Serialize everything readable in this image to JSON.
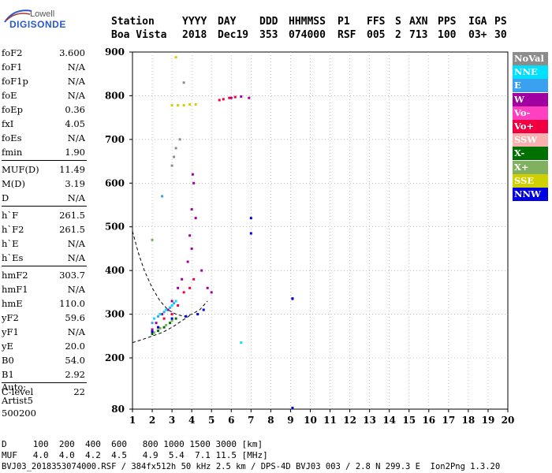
{
  "logo": {
    "line1": "Lowell",
    "line2": "DIGISONDE"
  },
  "header": {
    "labels": [
      "Station",
      "YYYY",
      "DAY",
      "DDD",
      "HHMMSS",
      "P1",
      "FFS",
      "S",
      "AXN",
      "PPS",
      "IGA",
      "PS"
    ],
    "values": [
      "Boa Vista",
      "2018",
      "Dec19",
      "353",
      "074000",
      "RSF",
      "005",
      "2",
      "713",
      "100",
      "03+",
      "30"
    ]
  },
  "params": [
    {
      "name": "foF2",
      "value": "3.600"
    },
    {
      "name": "foF1",
      "value": "N/A"
    },
    {
      "name": "foF1p",
      "value": "N/A"
    },
    {
      "name": "foE",
      "value": "N/A"
    },
    {
      "name": "foEp",
      "value": "0.36"
    },
    {
      "name": "fxI",
      "value": "4.05"
    },
    {
      "name": "foEs",
      "value": "N/A"
    },
    {
      "name": "fmin",
      "value": "1.90"
    },
    {
      "name": "MUF(D)",
      "value": "11.49"
    },
    {
      "name": "M(D)",
      "value": "3.19"
    },
    {
      "name": "D",
      "value": "N/A"
    },
    {
      "name": "h`F",
      "value": "261.5"
    },
    {
      "name": "h`F2",
      "value": "261.5"
    },
    {
      "name": "h`E",
      "value": "N/A"
    },
    {
      "name": "h`Es",
      "value": "N/A"
    },
    {
      "name": "hmF2",
      "value": "303.7"
    },
    {
      "name": "hmF1",
      "value": "N/A"
    },
    {
      "name": "hmE",
      "value": "110.0"
    },
    {
      "name": "yF2",
      "value": "59.6"
    },
    {
      "name": "yF1",
      "value": "N/A"
    },
    {
      "name": "yE",
      "value": "20.0"
    },
    {
      "name": "B0",
      "value": "54.0"
    },
    {
      "name": "B1",
      "value": "2.92"
    },
    {
      "name": "C-level",
      "value": "22"
    }
  ],
  "auto": {
    "line1": "Auto:",
    "line2": "Artist5",
    "line3": "500200"
  },
  "legend": [
    {
      "label": "NoVal",
      "bg": "#8c8c8c",
      "fg": "#ffffff"
    },
    {
      "label": "NNE",
      "bg": "#00e0ff",
      "fg": "#ffffff"
    },
    {
      "label": "E",
      "bg": "#3aa0f0",
      "fg": "#ffffff"
    },
    {
      "label": "W",
      "bg": "#a000a0",
      "fg": "#ffffff"
    },
    {
      "label": "Vo-",
      "bg": "#ff40c0",
      "fg": "#ffffff"
    },
    {
      "label": "Vo+",
      "bg": "#f00040",
      "fg": "#ffffff"
    },
    {
      "label": "SSW",
      "bg": "#f8b0b0",
      "fg": "#ffffff"
    },
    {
      "label": "X-",
      "bg": "#007000",
      "fg": "#ffffff"
    },
    {
      "label": "X+",
      "bg": "#80b060",
      "fg": "#ffffff"
    },
    {
      "label": "SSE",
      "bg": "#d0d000",
      "fg": "#ffffff"
    },
    {
      "label": "NNW",
      "bg": "#0000e0",
      "fg": "#ffffff"
    }
  ],
  "bottom": {
    "d_row": "D     100  200  400  600   800 1000 1500 3000 [km]",
    "muf_row": "MUF   4.0  4.0  4.2  4.5   4.9  5.4  7.1 11.5 [MHz]",
    "footer": "BVJ03_2018353074000.RSF / 384fx512h 50 kHz 2.5 km / DPS-4D BVJ03 003 / 2.8 N 299.3 E  Ion2Png 1.3.20"
  },
  "chart_data": {
    "type": "scatter",
    "title": "",
    "xlabel": "",
    "ylabel": "",
    "xlim": [
      1,
      20
    ],
    "ylim": [
      80,
      900
    ],
    "y_break": "Axis bottom labeled 80; axis above linear 200-900",
    "xticks": [
      1,
      2,
      3,
      4,
      5,
      6,
      7,
      8,
      9,
      10,
      11,
      12,
      13,
      14,
      15,
      16,
      17,
      18,
      19,
      20
    ],
    "yticks": [
      80,
      200,
      300,
      400,
      500,
      600,
      700,
      800,
      900
    ],
    "grid": true,
    "series": [
      {
        "name": "W",
        "color": "#a000a0",
        "x": [
          2.0,
          2.2,
          2.5,
          2.8,
          3.0,
          3.3,
          3.5,
          3.8,
          4.0,
          4.2,
          4.5,
          4.8,
          5.0,
          3.9,
          4.0,
          4.1,
          4.05,
          6.0,
          6.5,
          6.9,
          9.1
        ],
        "y": [
          265,
          280,
          300,
          310,
          330,
          360,
          380,
          420,
          450,
          520,
          400,
          360,
          350,
          480,
          540,
          600,
          620,
          795,
          798,
          795,
          335
        ]
      },
      {
        "name": "Vo+",
        "color": "#f00040",
        "x": [
          2.0,
          2.3,
          2.6,
          3.0,
          3.3,
          3.6,
          3.9,
          4.1,
          5.4,
          5.6,
          5.9,
          6.2
        ],
        "y": [
          260,
          270,
          290,
          300,
          320,
          350,
          360,
          380,
          790,
          792,
          795,
          797
        ]
      },
      {
        "name": "NNE",
        "color": "#00e0ff",
        "x": [
          2.1,
          2.4,
          2.7,
          3.0,
          3.2,
          6.5
        ],
        "y": [
          290,
          300,
          310,
          320,
          330,
          235
        ]
      },
      {
        "name": "E",
        "color": "#3aa0f0",
        "x": [
          2.0,
          2.3,
          2.6,
          2.9,
          3.1,
          2.5
        ],
        "y": [
          280,
          295,
          305,
          315,
          325,
          570
        ]
      },
      {
        "name": "X-",
        "color": "#007000",
        "x": [
          2.0,
          2.3,
          2.6,
          2.9,
          3.2
        ],
        "y": [
          255,
          262,
          270,
          280,
          290
        ]
      },
      {
        "name": "X+",
        "color": "#80b060",
        "x": [
          2.1,
          2.4,
          2.7,
          3.0,
          2.0
        ],
        "y": [
          258,
          268,
          275,
          285,
          470
        ]
      },
      {
        "name": "SSE",
        "color": "#d0d000",
        "x": [
          3.0,
          3.3,
          3.6,
          3.9,
          4.2,
          3.2
        ],
        "y": [
          778,
          778,
          778,
          780,
          780,
          888
        ]
      },
      {
        "name": "NNW",
        "color": "#0000e0",
        "x": [
          2.0,
          2.3,
          3.0,
          3.7,
          4.3,
          4.6,
          7.0,
          7.0,
          9.1,
          9.1
        ],
        "y": [
          260,
          270,
          290,
          295,
          300,
          310,
          520,
          485,
          83,
          336
        ]
      },
      {
        "name": "NoVal",
        "color": "#8c8c8c",
        "x": [
          3.0,
          3.1,
          3.2,
          3.4,
          3.6
        ],
        "y": [
          640,
          660,
          680,
          700,
          830
        ]
      }
    ],
    "trace": {
      "name": "dashed curve",
      "x": [
        1.0,
        1.3,
        1.6,
        2.0,
        2.4,
        2.8,
        3.2,
        3.6,
        4.0,
        4.4,
        4.8
      ],
      "y": [
        490,
        440,
        400,
        360,
        330,
        310,
        300,
        295,
        300,
        310,
        330
      ]
    },
    "trace2": {
      "name": "dashed lower",
      "x": [
        1.0,
        1.5,
        2.0,
        2.5,
        3.0,
        3.5,
        4.0
      ],
      "y": [
        235,
        242,
        250,
        258,
        270,
        285,
        300
      ]
    }
  }
}
